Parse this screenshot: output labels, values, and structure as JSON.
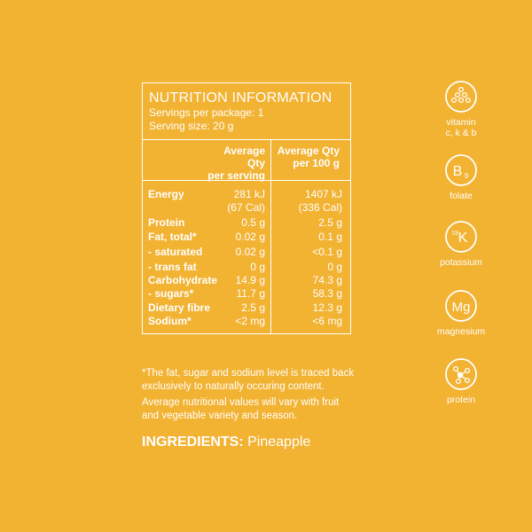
{
  "panel": {
    "title": "NUTRITION INFORMATION",
    "servings_per_package": "Servings per package: 1",
    "serving_size": "Serving size: 20 g",
    "col_serving_line1": "Average Qty",
    "col_serving_line2": "per serving",
    "col_100g_line1": "Average Qty",
    "col_100g_line2": "per 100 g",
    "rows": [
      {
        "name": "Energy",
        "serving": "281 kJ",
        "per100": "1407 kJ"
      },
      {
        "name": "",
        "serving": "(67 Cal)",
        "per100": "(336 Cal)"
      },
      {
        "name": "Protein",
        "serving": "0.5 g",
        "per100": "2.5 g"
      },
      {
        "name": "Fat, total*",
        "serving": "0.02 g",
        "per100": "0.1 g"
      },
      {
        "name": "- saturated",
        "serving": "0.02 g",
        "per100": "<0.1 g"
      },
      {
        "name": "- trans fat",
        "serving": "0 g",
        "per100": "0 g"
      },
      {
        "name": "Carbohydrate",
        "serving": "14.9 g",
        "per100": "74.3 g"
      },
      {
        "name": "- sugars*",
        "serving": "11.7 g",
        "per100": "58.3 g"
      },
      {
        "name": "Dietary fibre",
        "serving": "2.5 g",
        "per100": "12.3 g"
      },
      {
        "name": "Sodium*",
        "serving": "<2 mg",
        "per100": "<6 mg"
      }
    ]
  },
  "notes": {
    "footnote_line1": "*The fat, sugar and sodium level is traced back",
    "footnote_line2": "exclusively to naturally occuring content.",
    "average_line1": "Average nutritional values will vary with fruit",
    "average_line2": "and vegetable variety and season."
  },
  "ingredients": {
    "label": "INGREDIENTS:",
    "value": "Pineapple"
  },
  "icons": [
    {
      "icon": "vitamin-dots-icon",
      "label_line1": "vitamin",
      "label_line2": "c, k & b"
    },
    {
      "icon": "b9-icon",
      "glyph": "B",
      "subscript": "9",
      "label_line1": "folate"
    },
    {
      "icon": "potassium-icon",
      "glyph": "K",
      "superscript": "19",
      "label_line1": "potassium"
    },
    {
      "icon": "magnesium-icon",
      "glyph": "Mg",
      "label_line1": "magnesium"
    },
    {
      "icon": "protein-molecule-icon",
      "label_line1": "protein"
    }
  ],
  "colors": {
    "background": "#F2B232",
    "foreground": "#FFFFFF"
  }
}
